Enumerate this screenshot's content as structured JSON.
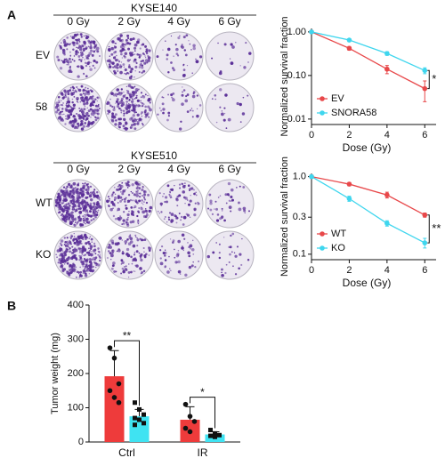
{
  "panels": [
    "A",
    "B"
  ],
  "clonogenic": [
    {
      "title": "KYSE140",
      "doses": [
        "0 Gy",
        "2 Gy",
        "4 Gy",
        "6 Gy"
      ],
      "rows": [
        "EV",
        "58"
      ]
    },
    {
      "title": "KYSE510",
      "doses": [
        "0 Gy",
        "2 Gy",
        "4 Gy",
        "6 Gy"
      ],
      "rows": [
        "WT",
        "KO"
      ]
    }
  ],
  "chart_data": [
    {
      "type": "line",
      "y_label": "Normalized survival fraction",
      "x_label": "Dose (Gy)",
      "x": [
        0,
        2,
        4,
        6
      ],
      "xlim": [
        0,
        6.6
      ],
      "xticks": [
        0,
        2,
        4,
        6
      ],
      "ylim": [
        0.0075,
        1.2
      ],
      "log_y": true,
      "yticks": [
        {
          "value": 0.01,
          "label": "0.01"
        },
        {
          "value": 0.1,
          "label": "0.10"
        },
        {
          "value": 1,
          "label": "1.00"
        }
      ],
      "legend": "lower left",
      "annotation": "*",
      "series": [
        {
          "name": "EV",
          "color": "#e8484a",
          "values": [
            1,
            0.42,
            0.14,
            0.05
          ],
          "errors": [
            0,
            0.04,
            0.03,
            0.025
          ]
        },
        {
          "name": "SNORA58",
          "color": "#3fd6ee",
          "values": [
            1,
            0.65,
            0.32,
            0.13
          ],
          "errors": [
            0,
            0.05,
            0.03,
            0.02
          ]
        }
      ]
    },
    {
      "type": "line",
      "y_label": "Normalized survival fraction",
      "x_label": "Dose (Gy)",
      "x": [
        0,
        2,
        4,
        6
      ],
      "xlim": [
        0,
        6.6
      ],
      "xticks": [
        0,
        2,
        4,
        6
      ],
      "ylim": [
        0.085,
        1.1
      ],
      "log_y": true,
      "yticks": [
        0.1,
        0.3,
        {
          "value": 1,
          "label": "1.0"
        }
      ],
      "legend": "lower left",
      "annotation": "**",
      "series": [
        {
          "name": "WT",
          "color": "#e8484a",
          "values": [
            1,
            0.8,
            0.58,
            0.32
          ],
          "errors": [
            0,
            0.04,
            0.05,
            0.02
          ]
        },
        {
          "name": "KO",
          "color": "#3fd6ee",
          "values": [
            1,
            0.52,
            0.25,
            0.14
          ],
          "errors": [
            0,
            0.04,
            0.02,
            0.02
          ]
        }
      ]
    },
    {
      "type": "bar",
      "y_label": "Tumor weight (mg)",
      "categories": [
        "Ctrl",
        "IR"
      ],
      "ylim": [
        0,
        400
      ],
      "yticks": [
        0,
        100,
        200,
        300,
        400
      ],
      "annotations": [
        "**",
        "*"
      ],
      "series": [
        {
          "color": "#ee3b3b",
          "values": [
            192,
            65
          ],
          "errors": [
            75,
            38
          ],
          "points": [
            [
              275,
              245,
              170,
              150,
              130,
              115
            ],
            [
              110,
              75,
              60,
              40,
              30
            ]
          ]
        },
        {
          "color": "#3fe3f2",
          "values": [
            75,
            22
          ],
          "errors": [
            20,
            8
          ],
          "points": [
            [
              115,
              95,
              80,
              70,
              65,
              55,
              50
            ],
            [
              35,
              25,
              20,
              18,
              15
            ]
          ]
        }
      ]
    }
  ]
}
